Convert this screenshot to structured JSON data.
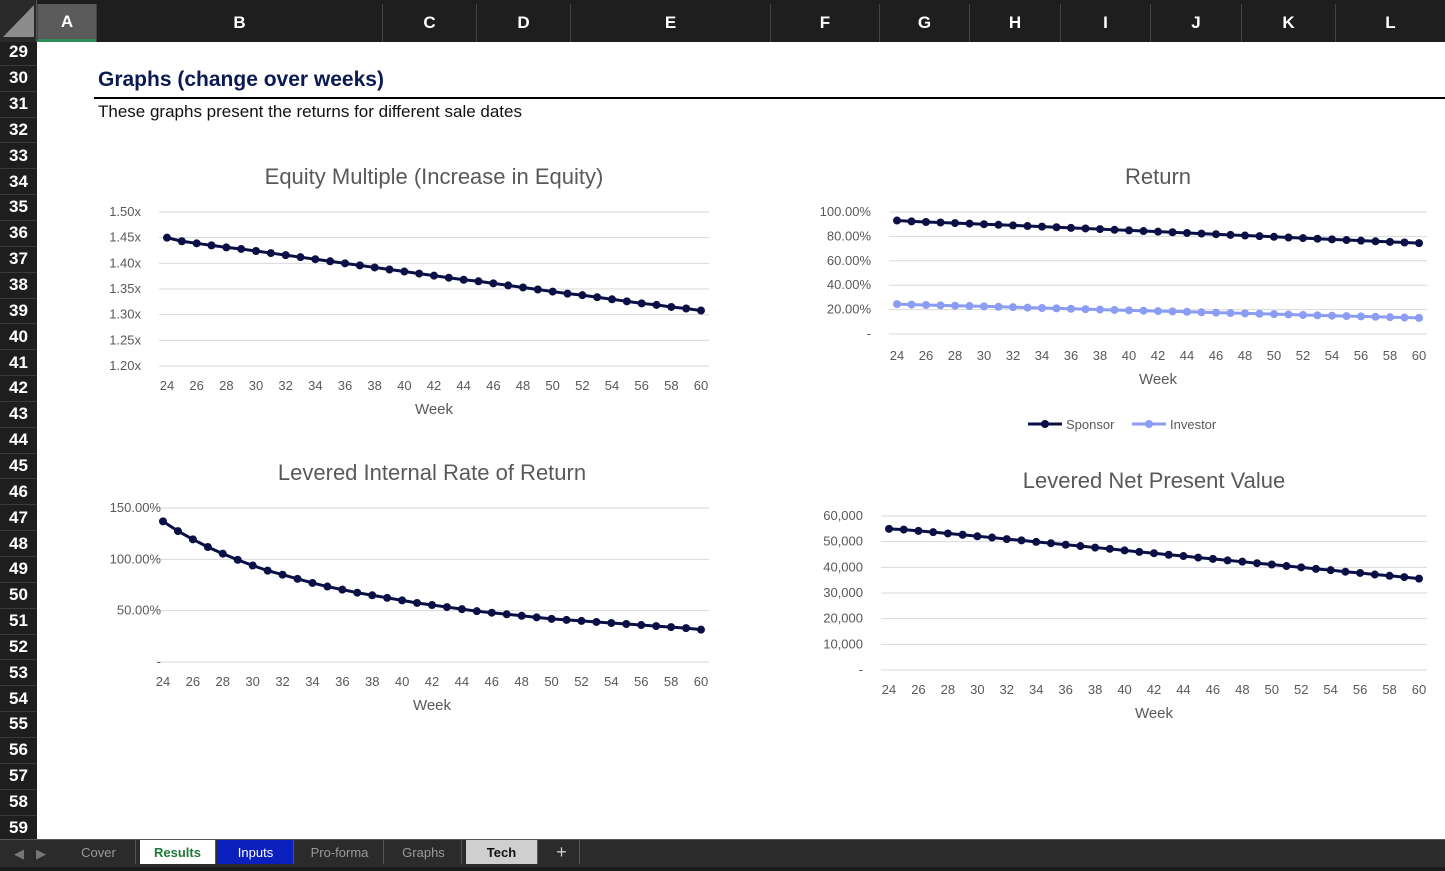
{
  "columns": [
    "A",
    "B",
    "C",
    "D",
    "E",
    "F",
    "G",
    "H",
    "I",
    "J",
    "K",
    "L"
  ],
  "rows": [
    "29",
    "30",
    "31",
    "32",
    "33",
    "34",
    "35",
    "36",
    "37",
    "38",
    "39",
    "40",
    "41",
    "42",
    "43",
    "44",
    "45",
    "46",
    "47",
    "48",
    "49",
    "50",
    "51",
    "52",
    "53",
    "54",
    "55",
    "56",
    "57",
    "58",
    "59"
  ],
  "sheet": {
    "title": "Graphs (change over weeks)",
    "subtitle": "These graphs present the returns for different sale dates"
  },
  "colors": {
    "primary": "#0a0f45",
    "secondary": "#8b9cf3",
    "tab_active": "#1f7a3a",
    "tab_blue": "#0b1fbf"
  },
  "tabs": [
    {
      "label": "Cover",
      "style": "normal"
    },
    {
      "label": "Results",
      "style": "active"
    },
    {
      "label": "Inputs",
      "style": "blue"
    },
    {
      "label": "Pro-forma",
      "style": "normal"
    },
    {
      "label": "Graphs",
      "style": "normal"
    },
    {
      "label": "Tech",
      "style": "grey"
    },
    {
      "label": "+",
      "style": "plus"
    }
  ],
  "chart_data": [
    {
      "id": "equity",
      "type": "line",
      "title": "Equity Multiple (Increase in Equity)",
      "xlabel": "Week",
      "ylabel": "",
      "x": [
        24,
        25,
        26,
        27,
        28,
        29,
        30,
        31,
        32,
        33,
        34,
        35,
        36,
        37,
        38,
        39,
        40,
        41,
        42,
        43,
        44,
        45,
        46,
        47,
        48,
        49,
        50,
        51,
        52,
        53,
        54,
        55,
        56,
        57,
        58,
        59,
        60
      ],
      "ylim": [
        1.2,
        1.5
      ],
      "yticks": [
        1.2,
        1.25,
        1.3,
        1.35,
        1.4,
        1.45,
        1.5
      ],
      "ytick_labels": [
        "1.20x",
        "1.25x",
        "1.30x",
        "1.35x",
        "1.40x",
        "1.45x",
        "1.50x"
      ],
      "xticks": [
        24,
        26,
        28,
        30,
        32,
        34,
        36,
        38,
        40,
        42,
        44,
        46,
        48,
        50,
        52,
        54,
        56,
        58,
        60
      ],
      "series": [
        {
          "name": "Equity Multiple",
          "color": "#0a0f45",
          "values": [
            1.45,
            1.443,
            1.439,
            1.435,
            1.431,
            1.428,
            1.424,
            1.42,
            1.416,
            1.412,
            1.408,
            1.404,
            1.4,
            1.396,
            1.392,
            1.388,
            1.384,
            1.38,
            1.376,
            1.372,
            1.368,
            1.365,
            1.361,
            1.357,
            1.353,
            1.349,
            1.345,
            1.341,
            1.338,
            1.334,
            1.33,
            1.326,
            1.322,
            1.319,
            1.315,
            1.312,
            1.308
          ]
        }
      ]
    },
    {
      "id": "return",
      "type": "line",
      "title": "Return",
      "xlabel": "Week",
      "ylabel": "",
      "x": [
        24,
        25,
        26,
        27,
        28,
        29,
        30,
        31,
        32,
        33,
        34,
        35,
        36,
        37,
        38,
        39,
        40,
        41,
        42,
        43,
        44,
        45,
        46,
        47,
        48,
        49,
        50,
        51,
        52,
        53,
        54,
        55,
        56,
        57,
        58,
        59,
        60
      ],
      "ylim": [
        0,
        100
      ],
      "yticks": [
        0,
        20,
        40,
        60,
        80,
        100
      ],
      "ytick_labels": [
        "-",
        "20.00%",
        "40.00%",
        "60.00%",
        "80.00%",
        "100.00%"
      ],
      "xticks": [
        24,
        26,
        28,
        30,
        32,
        34,
        36,
        38,
        40,
        42,
        44,
        46,
        48,
        50,
        52,
        54,
        56,
        58,
        60
      ],
      "legend": "bottom",
      "series": [
        {
          "name": "Sponsor",
          "color": "#0a0f45",
          "values": [
            93.0,
            92.3,
            91.8,
            91.4,
            90.9,
            90.5,
            90.0,
            89.5,
            89.0,
            88.5,
            88.0,
            87.5,
            87.0,
            86.5,
            86.0,
            85.4,
            84.9,
            84.4,
            83.9,
            83.4,
            82.8,
            82.3,
            81.8,
            81.2,
            80.7,
            80.2,
            79.7,
            79.1,
            78.6,
            78.1,
            77.6,
            77.0,
            76.5,
            76.0,
            75.5,
            75.0,
            74.5
          ]
        },
        {
          "name": "Investor",
          "color": "#8b9cf3",
          "values": [
            24.5,
            24.1,
            23.8,
            23.5,
            23.2,
            22.9,
            22.6,
            22.3,
            22.0,
            21.6,
            21.3,
            21.0,
            20.7,
            20.4,
            20.0,
            19.7,
            19.4,
            19.1,
            18.8,
            18.5,
            18.2,
            17.8,
            17.5,
            17.2,
            16.9,
            16.6,
            16.3,
            16.0,
            15.6,
            15.3,
            15.0,
            14.7,
            14.4,
            14.1,
            13.8,
            13.5,
            13.2
          ]
        }
      ]
    },
    {
      "id": "irr",
      "type": "line",
      "title": "Levered Internal Rate of Return",
      "xlabel": "Week",
      "ylabel": "",
      "x": [
        24,
        25,
        26,
        27,
        28,
        29,
        30,
        31,
        32,
        33,
        34,
        35,
        36,
        37,
        38,
        39,
        40,
        41,
        42,
        43,
        44,
        45,
        46,
        47,
        48,
        49,
        50,
        51,
        52,
        53,
        54,
        55,
        56,
        57,
        58,
        59,
        60
      ],
      "ylim": [
        0,
        150
      ],
      "yticks": [
        0,
        50,
        100,
        150
      ],
      "ytick_labels": [
        "-",
        "50.00%",
        "100.00%",
        "150.00%"
      ],
      "xticks": [
        24,
        26,
        28,
        30,
        32,
        34,
        36,
        38,
        40,
        42,
        44,
        46,
        48,
        50,
        52,
        54,
        56,
        58,
        60
      ],
      "series": [
        {
          "name": "IRR",
          "color": "#0a0f45",
          "values": [
            137.0,
            127.5,
            119.5,
            112.0,
            105.5,
            99.5,
            94.0,
            89.0,
            85.0,
            81.0,
            77.0,
            73.5,
            70.5,
            67.5,
            65.0,
            62.5,
            60.0,
            57.5,
            55.5,
            53.5,
            51.5,
            49.5,
            48.0,
            46.5,
            45.0,
            43.5,
            42.0,
            41.0,
            40.0,
            39.0,
            38.0,
            37.0,
            36.0,
            35.0,
            34.0,
            33.0,
            31.5
          ]
        }
      ]
    },
    {
      "id": "npv",
      "type": "line",
      "title": "Levered Net Present Value",
      "xlabel": "Week",
      "ylabel": "",
      "x": [
        24,
        25,
        26,
        27,
        28,
        29,
        30,
        31,
        32,
        33,
        34,
        35,
        36,
        37,
        38,
        39,
        40,
        41,
        42,
        43,
        44,
        45,
        46,
        47,
        48,
        49,
        50,
        51,
        52,
        53,
        54,
        55,
        56,
        57,
        58,
        59,
        60
      ],
      "ylim": [
        0,
        60000
      ],
      "yticks": [
        0,
        10000,
        20000,
        30000,
        40000,
        50000,
        60000
      ],
      "ytick_labels": [
        "-",
        "10,000",
        "20,000",
        "30,000",
        "40,000",
        "50,000",
        "60,000"
      ],
      "xticks": [
        24,
        26,
        28,
        30,
        32,
        34,
        36,
        38,
        40,
        42,
        44,
        46,
        48,
        50,
        52,
        54,
        56,
        58,
        60
      ],
      "series": [
        {
          "name": "NPV",
          "color": "#0a0f45",
          "values": [
            55000,
            54700,
            54200,
            53700,
            53200,
            52700,
            52100,
            51600,
            51000,
            50500,
            49900,
            49400,
            48800,
            48300,
            47700,
            47200,
            46600,
            46000,
            45500,
            44900,
            44400,
            43800,
            43300,
            42700,
            42200,
            41600,
            41100,
            40500,
            40000,
            39400,
            38900,
            38300,
            37800,
            37200,
            36700,
            36200,
            35600
          ]
        }
      ]
    }
  ]
}
